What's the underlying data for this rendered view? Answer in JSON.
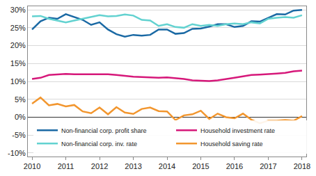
{
  "chart_data": {
    "type": "line",
    "categories": [
      "2010",
      null,
      null,
      null,
      "2011",
      null,
      null,
      null,
      "2012",
      null,
      null,
      null,
      "2013",
      null,
      null,
      null,
      "2014",
      null,
      null,
      null,
      "2015",
      null,
      null,
      null,
      "2016",
      null,
      null,
      null,
      "2017",
      null,
      null,
      null,
      "2018"
    ],
    "series": [
      {
        "name": "Non-financial corp. profit share",
        "color": "#1a69a4",
        "values": [
          24.5,
          26.8,
          27.8,
          27.5,
          28.8,
          28.0,
          27.2,
          25.8,
          26.5,
          24.5,
          23.2,
          22.5,
          23.0,
          22.8,
          23.0,
          24.5,
          24.5,
          23.3,
          23.5,
          24.7,
          24.8,
          25.3,
          26.0,
          26.0,
          25.2,
          25.5,
          26.8,
          26.7,
          27.8,
          28.8,
          28.7,
          29.8,
          30.0
        ]
      },
      {
        "name": "Household investment rate",
        "color": "#d6187a",
        "values": [
          10.7,
          11.0,
          11.8,
          12.0,
          12.1,
          12.0,
          12.0,
          12.1,
          12.0,
          12.0,
          11.8,
          11.5,
          11.3,
          11.2,
          11.1,
          11.0,
          11.1,
          10.9,
          10.7,
          10.3,
          10.2,
          10.1,
          10.3,
          10.6,
          11.0,
          11.4,
          11.8,
          11.9,
          12.0,
          12.2,
          12.4,
          12.8,
          13.0
        ]
      },
      {
        "name": "Non-financial corp. inv. rate",
        "color": "#62d2d0",
        "values": [
          28.2,
          28.3,
          27.5,
          27.0,
          26.5,
          27.0,
          27.5,
          28.0,
          28.5,
          28.2,
          28.3,
          28.7,
          28.4,
          27.2,
          27.0,
          25.5,
          26.0,
          25.2,
          25.0,
          26.0,
          25.5,
          25.8,
          25.5,
          26.0,
          26.2,
          26.0,
          26.5,
          26.2,
          27.5,
          27.8,
          28.0,
          27.8,
          28.5
        ]
      },
      {
        "name": "Household saving rate",
        "color": "#f2962e",
        "values": [
          3.8,
          5.5,
          3.3,
          3.7,
          3.0,
          3.4,
          1.6,
          1.1,
          2.7,
          0.8,
          2.8,
          1.3,
          0.9,
          2.3,
          2.7,
          1.7,
          1.6,
          -0.8,
          0.5,
          0.8,
          1.8,
          -0.5,
          1.0,
          0.0,
          -0.3,
          1.0,
          -0.7,
          -1.7,
          -1.0,
          -1.0,
          -0.8,
          -1.0,
          0.3
        ]
      }
    ],
    "ylim": [
      -11,
      31
    ],
    "yticks": [
      {
        "value": -10,
        "label": "-10%"
      },
      {
        "value": -5,
        "label": "-5%"
      },
      {
        "value": 0,
        "label": "0%"
      },
      {
        "value": 5,
        "label": "5%"
      },
      {
        "value": 10,
        "label": "10%"
      },
      {
        "value": 15,
        "label": "15%"
      },
      {
        "value": 20,
        "label": "20%"
      },
      {
        "value": 25,
        "label": "25%"
      },
      {
        "value": 30,
        "label": "30%"
      }
    ],
    "grid": true,
    "legend": "lower left"
  }
}
